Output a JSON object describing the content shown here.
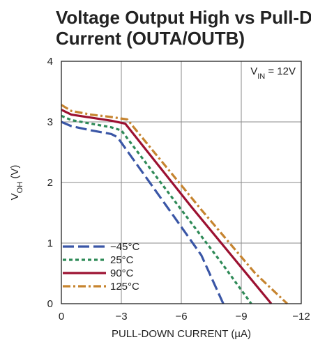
{
  "chart_data": {
    "type": "line",
    "title_lines": [
      "Voltage Output High vs Pull-Down",
      "Current (OUTA/OUTB)"
    ],
    "xlabel": "PULL-DOWN CURRENT (µA)",
    "ylabel": {
      "main": "V",
      "sub": "OH",
      "suffix": " (V)"
    },
    "annotation": {
      "main": "V",
      "sub": "IN",
      "suffix": " = 12V"
    },
    "xlim": [
      0,
      -12
    ],
    "ylim": [
      0,
      4
    ],
    "x_ticks": [
      0,
      -3,
      -6,
      -9,
      -12
    ],
    "x_tick_labels": [
      "0",
      "−3",
      "−6",
      "−9",
      "−12"
    ],
    "y_ticks": [
      0,
      1,
      2,
      3,
      4
    ],
    "y_tick_labels": [
      "0",
      "1",
      "2",
      "3",
      "4"
    ],
    "grid": true,
    "legend_position": "bottom-left",
    "series": [
      {
        "name": "−45°C",
        "color": "#3a56a6",
        "dash": "dash",
        "points": [
          [
            0,
            3.0
          ],
          [
            -0.5,
            2.93
          ],
          [
            -1.5,
            2.86
          ],
          [
            -2.5,
            2.8
          ],
          [
            -2.8,
            2.75
          ],
          [
            -5.5,
            1.5
          ],
          [
            -7.0,
            0.8
          ],
          [
            -8.1,
            0
          ]
        ]
      },
      {
        "name": "25°C",
        "color": "#2e8a57",
        "dash": "dot",
        "points": [
          [
            0,
            3.1
          ],
          [
            -0.5,
            3.03
          ],
          [
            -1.5,
            2.97
          ],
          [
            -2.5,
            2.91
          ],
          [
            -3.0,
            2.86
          ],
          [
            -6.0,
            1.55
          ],
          [
            -8.0,
            0.68
          ],
          [
            -9.5,
            0
          ]
        ]
      },
      {
        "name": "90°C",
        "color": "#9c1131",
        "dash": "solid",
        "points": [
          [
            0,
            3.2
          ],
          [
            -0.5,
            3.12
          ],
          [
            -1.5,
            3.07
          ],
          [
            -2.5,
            3.02
          ],
          [
            -3.2,
            2.97
          ],
          [
            -6.5,
            1.6
          ],
          [
            -9.0,
            0.6
          ],
          [
            -10.5,
            0
          ]
        ]
      },
      {
        "name": "125°C",
        "color": "#c6842f",
        "dash": "dashdot",
        "points": [
          [
            0,
            3.28
          ],
          [
            -0.5,
            3.18
          ],
          [
            -1.5,
            3.12
          ],
          [
            -2.5,
            3.08
          ],
          [
            -3.3,
            3.04
          ],
          [
            -7.0,
            1.55
          ],
          [
            -9.7,
            0.5
          ],
          [
            -11.3,
            0
          ]
        ]
      }
    ]
  }
}
